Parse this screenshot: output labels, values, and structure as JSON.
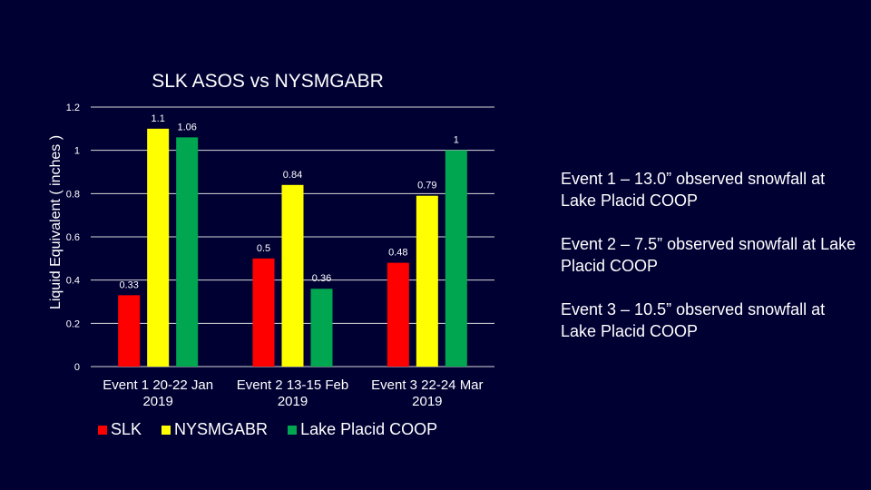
{
  "chart_data": {
    "type": "bar",
    "title": "SLK ASOS vs NYSMGABR",
    "ylabel": "Liquid Equivalent ( inches )",
    "xlabel": "",
    "ylim": [
      0,
      1.2
    ],
    "yticks": [
      "0",
      "0.2",
      "0.4",
      "0.6",
      "0.8",
      "1",
      "1.2"
    ],
    "grid": true,
    "legend_position": "bottom",
    "categories": [
      [
        "Event 1 20-22 Jan",
        "2019"
      ],
      [
        "Event 2 13-15 Feb",
        "2019"
      ],
      [
        "Event 3 22-24 Mar",
        "2019"
      ]
    ],
    "series": [
      {
        "name": "SLK",
        "color": "#ff0000",
        "values": [
          0.33,
          0.5,
          0.48
        ],
        "labels": [
          "0.33",
          "0.5",
          "0.48"
        ]
      },
      {
        "name": "NYSMGABR",
        "color": "#ffff00",
        "values": [
          1.1,
          0.84,
          0.79
        ],
        "labels": [
          "1.1",
          "0.84",
          "0.79"
        ]
      },
      {
        "name": "Lake Placid COOP",
        "color": "#00a650",
        "values": [
          1.06,
          0.36,
          1
        ],
        "labels": [
          "1.06",
          "0.36",
          "1"
        ]
      }
    ]
  },
  "notes": [
    "Event 1 – 13.0” observed snowfall at Lake Placid COOP",
    "Event 2 – 7.5” observed snowfall at Lake Placid COOP",
    "Event 3 – 10.5” observed snowfall at Lake Placid COOP"
  ]
}
